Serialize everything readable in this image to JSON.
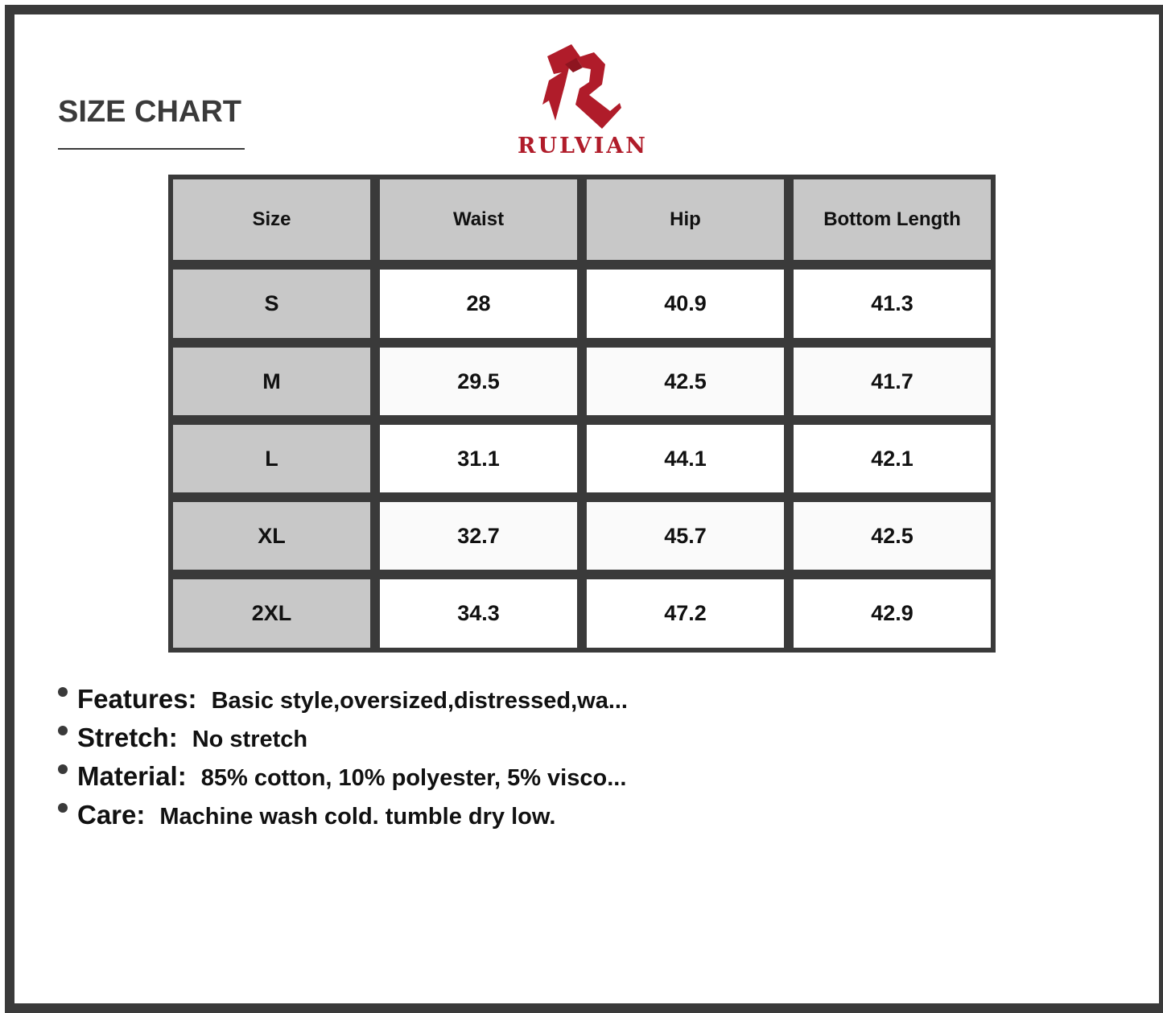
{
  "title": "SIZE CHART",
  "brand": {
    "name": "RULVIAN",
    "color": "#b01c2a"
  },
  "table": {
    "headers": [
      "Size",
      "Waist",
      "Hip",
      "Bottom Length"
    ],
    "rows": [
      [
        "S",
        "28",
        "40.9",
        "41.3"
      ],
      [
        "M",
        "29.5",
        "42.5",
        "41.7"
      ],
      [
        "L",
        "31.1",
        "44.1",
        "42.1"
      ],
      [
        "XL",
        "32.7",
        "45.7",
        "42.5"
      ],
      [
        "2XL",
        "34.3",
        "47.2",
        "42.9"
      ]
    ]
  },
  "notes": [
    {
      "label": "Features:",
      "value": "Basic style,oversized,distressed,wa..."
    },
    {
      "label": "Stretch:",
      "value": "No stretch"
    },
    {
      "label": "Material:",
      "value": "85% cotton, 10% polyester, 5% visco..."
    },
    {
      "label": "Care:",
      "value": "Machine wash cold. tumble dry low."
    }
  ]
}
